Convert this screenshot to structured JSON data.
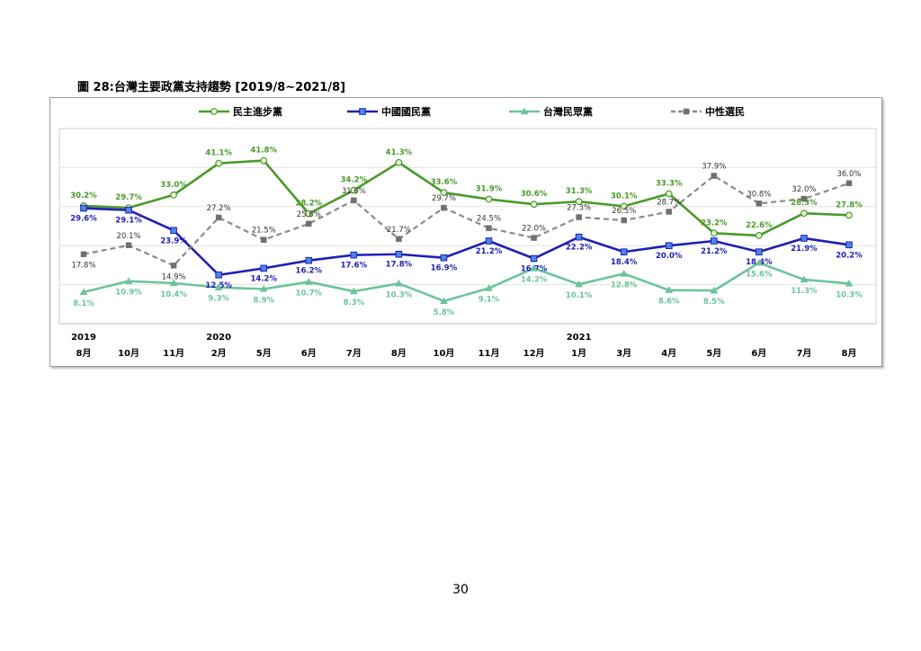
{
  "figure": {
    "title": "圖 28:台灣主要政黨支持趨勢  [2019/8~2021/8]"
  },
  "page_number": "30",
  "chart_data": {
    "type": "line",
    "categories": [
      "8月",
      "10月",
      "11月",
      "2月",
      "5月",
      "6月",
      "7月",
      "8月",
      "10月",
      "11月",
      "12月",
      "1月",
      "3月",
      "4月",
      "5月",
      "6月",
      "7月",
      "8月"
    ],
    "year_labels": [
      {
        "index": 0,
        "text": "2019"
      },
      {
        "index": 3,
        "text": "2020"
      },
      {
        "index": 11,
        "text": "2021"
      }
    ],
    "ylim": [
      0,
      50
    ],
    "grid": true,
    "legend_position": "top",
    "series": [
      {
        "name": "民主進步黨",
        "color": "#4a9a2a",
        "marker": "circle",
        "dashed": false,
        "values": [
          30.2,
          29.7,
          33.0,
          41.1,
          41.8,
          28.2,
          34.2,
          41.3,
          33.6,
          31.9,
          30.6,
          31.3,
          30.1,
          33.3,
          23.2,
          22.6,
          28.3,
          27.8
        ],
        "labels": [
          "30.2%",
          "29.7%",
          "33.0%",
          "41.1%",
          "41.8%",
          "28.2%",
          "34.2%",
          "41.3%",
          "33.6%",
          "31.9%",
          "30.6%",
          "31.3%",
          "30.1%",
          "33.3%",
          "23.2%",
          "22.6%",
          "28.3%",
          "27.8%"
        ]
      },
      {
        "name": "中國國民黨",
        "color": "#1f1fb4",
        "marker": "square",
        "dashed": false,
        "values": [
          29.6,
          29.1,
          23.9,
          12.5,
          14.2,
          16.2,
          17.6,
          17.8,
          16.9,
          21.2,
          16.7,
          22.2,
          18.4,
          20.0,
          21.2,
          18.4,
          21.9,
          20.2
        ],
        "labels": [
          "29.6%",
          "29.1%",
          "23.9%",
          "12.5%",
          "14.2%",
          "16.2%",
          "17.6%",
          "17.8%",
          "16.9%",
          "21.2%",
          "16.7%",
          "22.2%",
          "18.4%",
          "20.0%",
          "21.2%",
          "18.4%",
          "21.9%",
          "20.2%"
        ]
      },
      {
        "name": "台灣民眾黨",
        "color": "#6cc49a",
        "marker": "triangle",
        "dashed": false,
        "values": [
          8.1,
          10.9,
          10.4,
          9.3,
          8.9,
          10.7,
          8.3,
          10.3,
          5.8,
          9.1,
          14.2,
          10.1,
          12.8,
          8.6,
          8.5,
          15.6,
          11.3,
          10.3
        ],
        "labels": [
          "8.1%",
          "10.9%",
          "10.4%",
          "9.3%",
          "8.9%",
          "10.7%",
          "8.3%",
          "10.3%",
          "5.8%",
          "9.1%",
          "14.2%",
          "10.1%",
          "12.8%",
          "8.6%",
          "8.5%",
          "15.6%",
          "11.3%",
          "10.3%"
        ]
      },
      {
        "name": "中性選民",
        "color": "#8a8a8a",
        "marker": "x",
        "dashed": true,
        "values": [
          17.8,
          20.1,
          14.9,
          27.2,
          21.5,
          25.6,
          31.6,
          21.7,
          29.7,
          24.5,
          22.0,
          27.3,
          26.5,
          28.7,
          37.9,
          30.8,
          32.0,
          36.0
        ],
        "labels": [
          "17.8%",
          "20.1%",
          "14.9%",
          "27.2%",
          "21.5%",
          "25.6%",
          "31.6%",
          "21.7%",
          "29.7%",
          "24.5%",
          "22.0%",
          "27.3%",
          "26.5%",
          "28.7%",
          "37.9%",
          "30.8%",
          "32.0%",
          "36.0%"
        ]
      }
    ]
  }
}
